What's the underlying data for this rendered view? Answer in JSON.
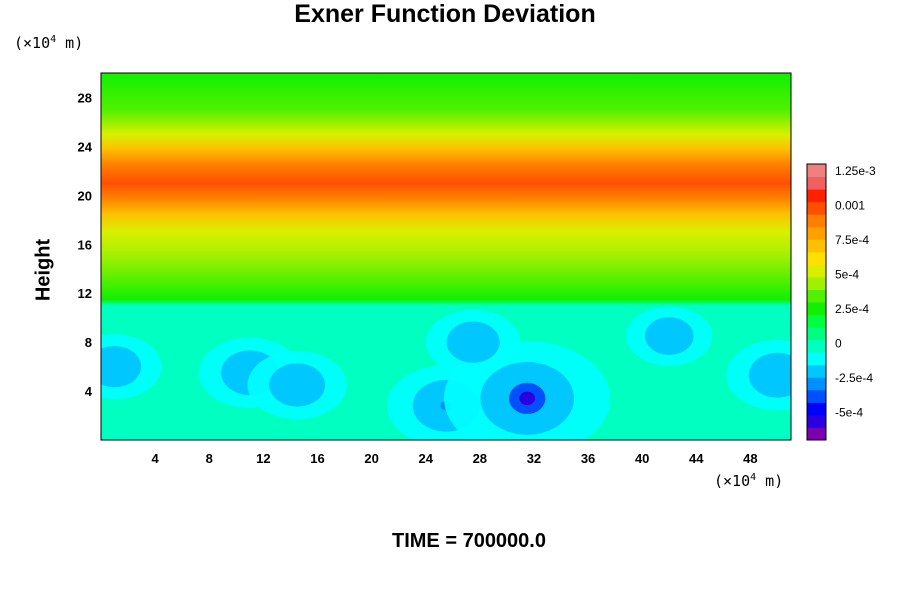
{
  "title": "Exner Function Deviation",
  "time_label": "TIME = 700000.0",
  "x_unit": {
    "prefix": "(×10",
    "exp": "4",
    "suffix": " m)"
  },
  "y_unit": {
    "prefix": "(×10",
    "exp": "4",
    "suffix": " m)"
  },
  "chart_data": {
    "type": "heatmap",
    "title": "Exner Function Deviation",
    "xlabel": "",
    "ylabel": "Height",
    "xlim": [
      0,
      51
    ],
    "ylim": [
      0,
      30
    ],
    "x_ticks": [
      "4",
      "8",
      "12",
      "16",
      "20",
      "24",
      "28",
      "32",
      "36",
      "40",
      "44",
      "48"
    ],
    "y_ticks": [
      "4",
      "8",
      "12",
      "16",
      "20",
      "24",
      "28"
    ],
    "x_tick_values": [
      4,
      8,
      12,
      16,
      20,
      24,
      28,
      32,
      36,
      40,
      44,
      48
    ],
    "y_tick_values": [
      4,
      8,
      12,
      16,
      20,
      24,
      28
    ],
    "vertical_profile": [
      {
        "height": 0,
        "value": 0
      },
      {
        "height": 11,
        "value": 0
      },
      {
        "height": 11.5,
        "value": 0.00025
      },
      {
        "height": 13,
        "value": 0.00035
      },
      {
        "height": 15,
        "value": 0.00045
      },
      {
        "height": 17,
        "value": 0.00055
      },
      {
        "height": 18.5,
        "value": 0.00075
      },
      {
        "height": 19.8,
        "value": 0.00085
      },
      {
        "height": 21,
        "value": 0.00095
      },
      {
        "height": 22.5,
        "value": 0.0009
      },
      {
        "height": 23.8,
        "value": 0.0007
      },
      {
        "height": 25,
        "value": 0.0005
      },
      {
        "height": 27,
        "value": 0.00035
      },
      {
        "height": 30,
        "value": 0.00028
      }
    ],
    "negative_regions": [
      {
        "x": 1,
        "y": 6,
        "value": -0.00015
      },
      {
        "x": 11,
        "y": 5.5,
        "value": -0.0002
      },
      {
        "x": 14.5,
        "y": 4.5,
        "value": -0.00018
      },
      {
        "x": 25.5,
        "y": 2.8,
        "value": -0.0003
      },
      {
        "x": 31.5,
        "y": 3.4,
        "value": -0.0006
      },
      {
        "x": 27.5,
        "y": 8,
        "value": -0.00015
      },
      {
        "x": 50,
        "y": 5.3,
        "value": -0.0002
      },
      {
        "x": 42,
        "y": 8.5,
        "value": -0.0001
      }
    ],
    "colorbar": {
      "labels": [
        "1.25e-3",
        "0.001",
        "7.5e-4",
        "5e-4",
        "2.5e-4",
        "0",
        "-2.5e-4",
        "-5e-4"
      ],
      "values": [
        0.00125,
        0.001,
        0.00075,
        0.0005,
        0.00025,
        0,
        -0.00025,
        -0.0005
      ],
      "min": -0.0007,
      "max": 0.0013,
      "colors": [
        "#7a00b0",
        "#2a00e0",
        "#0000ff",
        "#0050ff",
        "#0090ff",
        "#00c8ff",
        "#00ffff",
        "#00ffc0",
        "#00ff80",
        "#00ff40",
        "#10f000",
        "#50f000",
        "#a0f000",
        "#d8f000",
        "#ffe000",
        "#ffc000",
        "#ffa000",
        "#ff8000",
        "#ff5000",
        "#ff2000",
        "#f06060",
        "#f08080"
      ]
    }
  }
}
